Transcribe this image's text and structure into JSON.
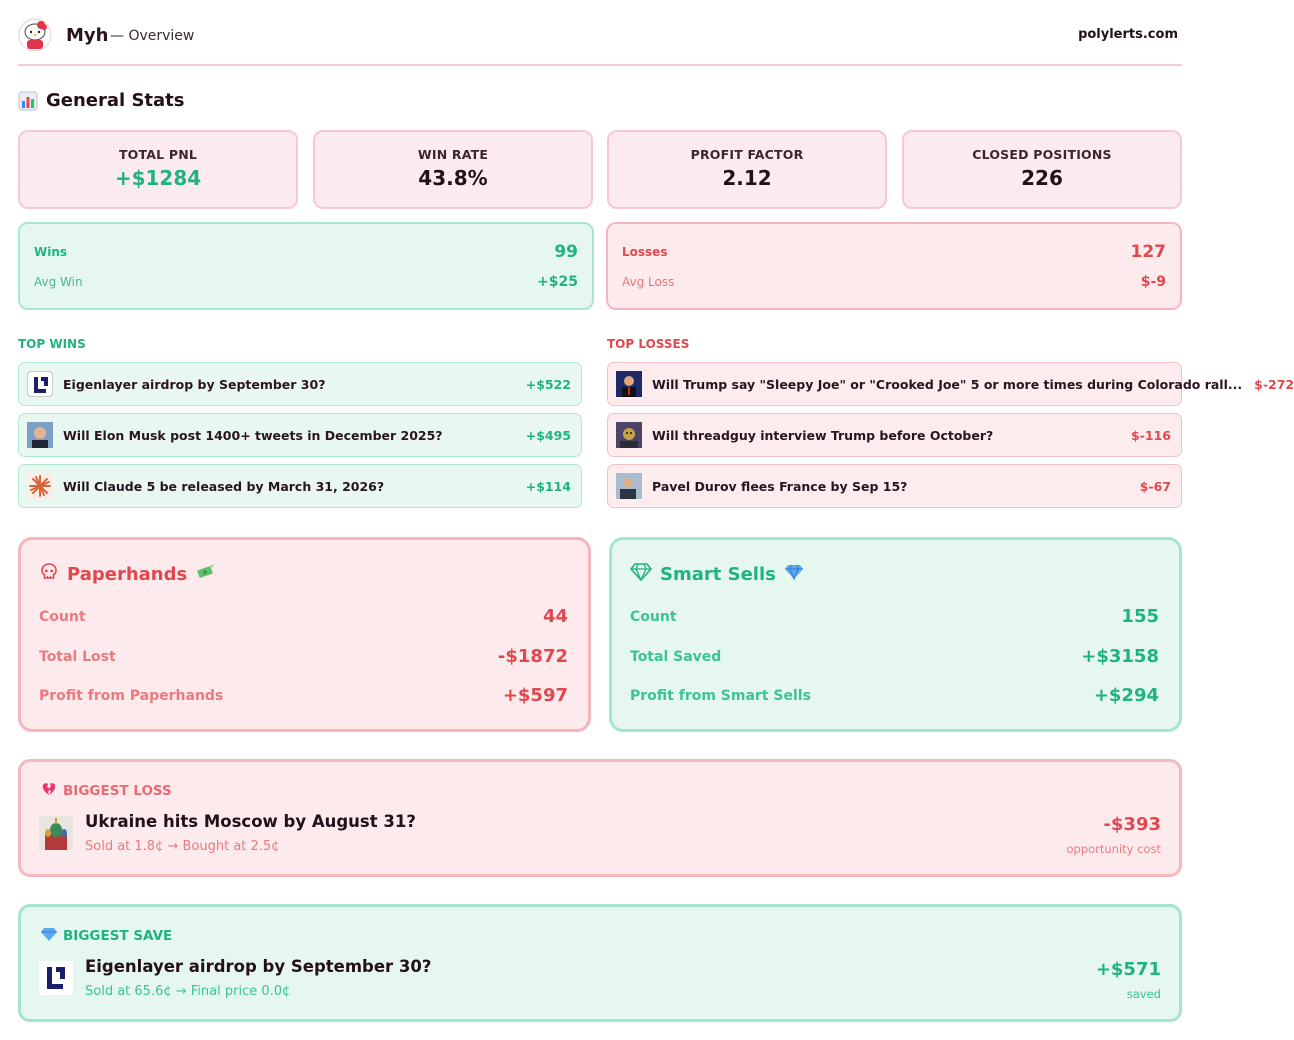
{
  "header": {
    "username": "Myh",
    "subtitle": "— Overview",
    "site": "polylerts.com"
  },
  "general_stats": {
    "title": "General Stats",
    "cards": [
      {
        "label": "TOTAL PNL",
        "value": "+$1284"
      },
      {
        "label": "WIN RATE",
        "value": "43.8%"
      },
      {
        "label": "PROFIT FACTOR",
        "value": "2.12"
      },
      {
        "label": "CLOSED POSITIONS",
        "value": "226"
      }
    ]
  },
  "wins": {
    "label": "Wins",
    "value": "99",
    "avg_label": "Avg Win",
    "avg_value": "+$25"
  },
  "losses": {
    "label": "Losses",
    "value": "127",
    "avg_label": "Avg Loss",
    "avg_value": "$-9"
  },
  "top_wins": {
    "title": "TOP WINS",
    "items": [
      {
        "title": "Eigenlayer airdrop by September 30?",
        "value": "+$522"
      },
      {
        "title": "Will Elon Musk post 1400+ tweets in December 2025?",
        "value": "+$495"
      },
      {
        "title": "Will Claude 5 be released by March 31, 2026?",
        "value": "+$114"
      }
    ]
  },
  "top_losses": {
    "title": "TOP LOSSES",
    "items": [
      {
        "title": "Will Trump say \"Sleepy Joe\" or \"Crooked Joe\" 5 or more times during Colorado rall...",
        "value": "$-272"
      },
      {
        "title": "Will threadguy interview Trump before October?",
        "value": "$-116"
      },
      {
        "title": "Pavel Durov flees France by Sep 15?",
        "value": "$-67"
      }
    ]
  },
  "paperhands": {
    "title": "Paperhands",
    "rows": [
      {
        "label": "Count",
        "value": "44"
      },
      {
        "label": "Total Lost",
        "value": "-$1872"
      },
      {
        "label": "Profit from Paperhands",
        "value": "+$597"
      }
    ]
  },
  "smart_sells": {
    "title": "Smart Sells",
    "rows": [
      {
        "label": "Count",
        "value": "155"
      },
      {
        "label": "Total Saved",
        "value": "+$3158"
      },
      {
        "label": "Profit from Smart Sells",
        "value": "+$294"
      }
    ]
  },
  "biggest_loss": {
    "heading": "BIGGEST LOSS",
    "title": "Ukraine hits Moscow by August 31?",
    "detail": "Sold at 1.8¢ → Bought at 2.5¢",
    "value": "-$393",
    "note": "opportunity cost"
  },
  "biggest_save": {
    "heading": "BIGGEST SAVE",
    "title": "Eigenlayer airdrop by September 30?",
    "detail": "Sold at 65.6¢ → Final price 0.0¢",
    "value": "+$571",
    "note": "saved"
  },
  "colors": {
    "green": "#1fb37e",
    "red": "#e0484f",
    "pink_bg": "#fcebee",
    "green_bg": "#e6f7f0"
  }
}
